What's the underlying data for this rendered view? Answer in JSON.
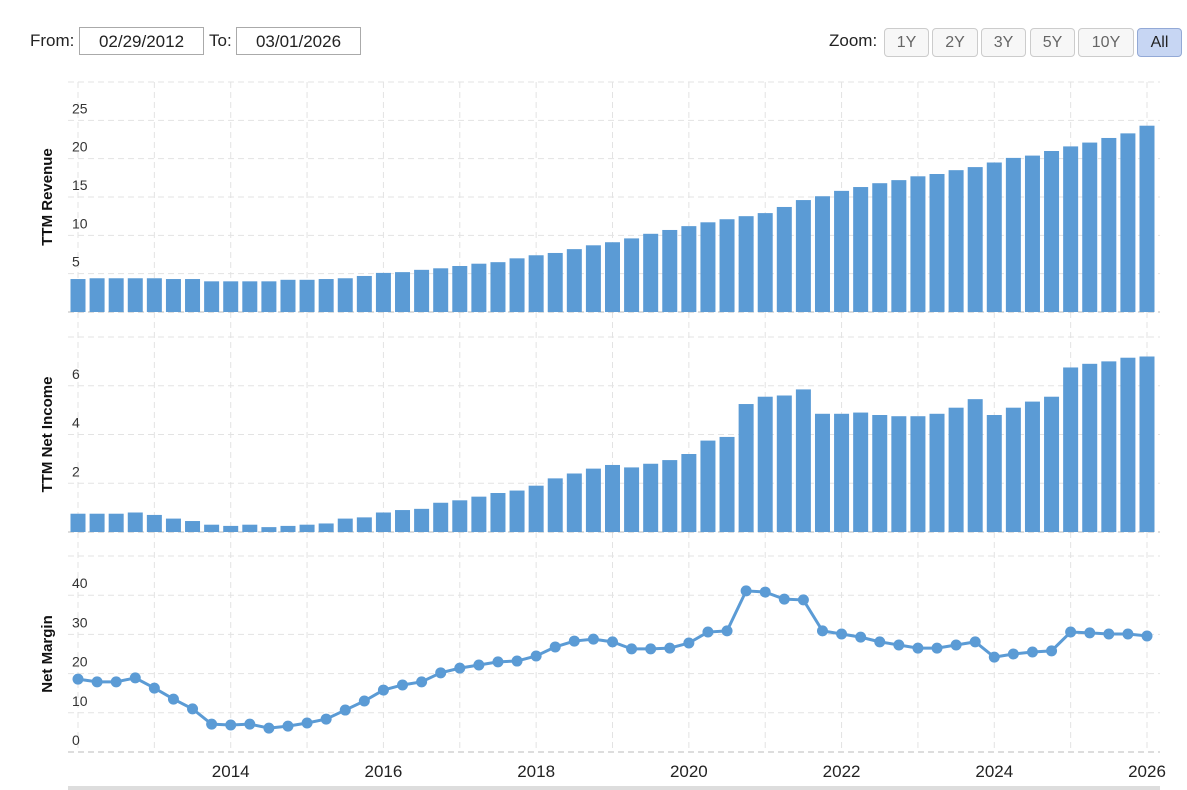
{
  "header": {
    "from_label": "From:",
    "from_value": "02/29/2012",
    "to_label": "To:",
    "to_value": "03/01/2026",
    "zoom_label": "Zoom:",
    "zoom_buttons": [
      "1Y",
      "2Y",
      "3Y",
      "5Y",
      "10Y",
      "All"
    ],
    "zoom_selected": 5
  },
  "chart_data": [
    {
      "type": "bar",
      "y_label": "TTM Revenue",
      "color": "#5b9bd5",
      "ylim": [
        0,
        30
      ],
      "yticks": [
        0,
        5,
        10,
        15,
        20,
        25
      ],
      "grid": true,
      "values": [
        4.3,
        4.4,
        4.4,
        4.4,
        4.4,
        4.3,
        4.3,
        4.0,
        4.0,
        4.0,
        4.0,
        4.2,
        4.2,
        4.3,
        4.4,
        4.7,
        5.1,
        5.2,
        5.5,
        5.7,
        6.0,
        6.3,
        6.5,
        7.0,
        7.4,
        7.7,
        8.2,
        8.7,
        9.1,
        9.6,
        10.2,
        10.7,
        11.2,
        11.7,
        12.1,
        12.5,
        12.9,
        13.7,
        14.6,
        15.1,
        15.8,
        16.3,
        16.8,
        17.2,
        17.7,
        18.0,
        18.5,
        18.9,
        19.5,
        20.1,
        20.4,
        21.0,
        21.6,
        22.1,
        22.7,
        23.3,
        24.3
      ]
    },
    {
      "type": "bar",
      "y_label": "TTM Net Income",
      "color": "#5b9bd5",
      "ylim": [
        0,
        8
      ],
      "yticks": [
        0,
        2,
        4,
        6
      ],
      "grid": true,
      "values": [
        0.75,
        0.75,
        0.75,
        0.8,
        0.7,
        0.55,
        0.45,
        0.3,
        0.25,
        0.3,
        0.2,
        0.25,
        0.3,
        0.35,
        0.55,
        0.6,
        0.8,
        0.9,
        0.95,
        1.2,
        1.3,
        1.45,
        1.6,
        1.7,
        1.9,
        2.2,
        2.4,
        2.6,
        2.75,
        2.65,
        2.8,
        2.95,
        3.2,
        3.75,
        3.9,
        5.25,
        5.55,
        5.6,
        5.85,
        4.85,
        4.85,
        4.9,
        4.8,
        4.75,
        4.75,
        4.85,
        5.1,
        5.45,
        4.8,
        5.1,
        5.35,
        5.55,
        6.75,
        6.9,
        7.0,
        7.15,
        7.2
      ]
    },
    {
      "type": "line",
      "y_label": "Net Margin",
      "color": "#5b9bd5",
      "ylim": [
        0,
        50
      ],
      "yticks": [
        0,
        10,
        20,
        30,
        40
      ],
      "grid": true,
      "categories": [
        null,
        null,
        null,
        null,
        null,
        null,
        null,
        null,
        "2014",
        null,
        null,
        null,
        null,
        null,
        null,
        null,
        "2016",
        null,
        null,
        null,
        null,
        null,
        null,
        null,
        "2018",
        null,
        null,
        null,
        null,
        null,
        null,
        null,
        "2020",
        null,
        null,
        null,
        null,
        null,
        null,
        null,
        "2022",
        null,
        null,
        null,
        null,
        null,
        null,
        null,
        "2024",
        null,
        null,
        null,
        null,
        null,
        null,
        null,
        "2026"
      ],
      "values": [
        18.6,
        17.9,
        17.9,
        18.9,
        16.3,
        13.5,
        11.0,
        7.1,
        6.9,
        7.1,
        6.1,
        6.6,
        7.4,
        8.4,
        10.7,
        13.0,
        15.8,
        17.1,
        17.9,
        20.2,
        21.4,
        22.2,
        23.0,
        23.2,
        24.5,
        26.8,
        28.3,
        28.8,
        28.1,
        26.3,
        26.3,
        26.5,
        27.8,
        30.6,
        30.9,
        41.1,
        40.8,
        39.0,
        38.8,
        30.9,
        30.1,
        29.3,
        28.1,
        27.3,
        26.5,
        26.5,
        27.3,
        28.1,
        24.2,
        25.0,
        25.5,
        25.8,
        30.6,
        30.4,
        30.1,
        30.1,
        29.6
      ]
    }
  ]
}
